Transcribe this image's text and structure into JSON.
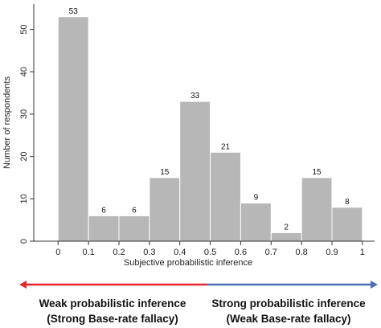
{
  "chart_data": {
    "type": "bar",
    "categories": [
      "0-0.1",
      "0.1-0.2",
      "0.2-0.3",
      "0.3-0.4",
      "0.4-0.5",
      "0.5-0.6",
      "0.6-0.7",
      "0.7-0.8",
      "0.8-0.9",
      "0.9-1"
    ],
    "bin_edges": [
      0,
      0.1,
      0.2,
      0.3,
      0.4,
      0.5,
      0.6,
      0.7,
      0.8,
      0.9,
      1
    ],
    "values": [
      53,
      6,
      6,
      15,
      33,
      21,
      9,
      2,
      15,
      8
    ],
    "data_labels": [
      "53",
      "6",
      "6",
      "15",
      "33",
      "21",
      "9",
      "2",
      "15",
      "8"
    ],
    "title": "",
    "xlabel": "Subjective probabilistic inference",
    "ylabel": "Number of respondents",
    "xlim": [
      -0.08,
      1.04
    ],
    "ylim": [
      0,
      56
    ],
    "xticks": [
      0,
      0.1,
      0.2,
      0.3,
      0.4,
      0.5,
      0.6,
      0.7,
      0.8,
      0.9,
      1
    ],
    "xtick_labels": [
      "0",
      "0.1",
      "0.2",
      "0.3",
      "0.4",
      "0.5",
      "0.6",
      "0.7",
      "0.8",
      "0.9",
      "1"
    ],
    "yticks": [
      0,
      10,
      20,
      30,
      40,
      50
    ],
    "ytick_labels": [
      "0",
      "10",
      "20",
      "30",
      "40",
      "50"
    ],
    "grid": false,
    "colors": {
      "bar": "#b7b7b7",
      "bar_edge": "#ffffff",
      "axis": "#333333"
    }
  },
  "annotations": {
    "left_arrow_color": "#e8262b",
    "right_arrow_color": "#4a6fb5",
    "left_split": 0.5,
    "left_line1": "Weak probabilistic inference",
    "left_line2": "(Strong Base-rate fallacy)",
    "right_line1": "Strong probabilistic inference",
    "right_line2": "(Weak Base-rate fallacy)"
  }
}
